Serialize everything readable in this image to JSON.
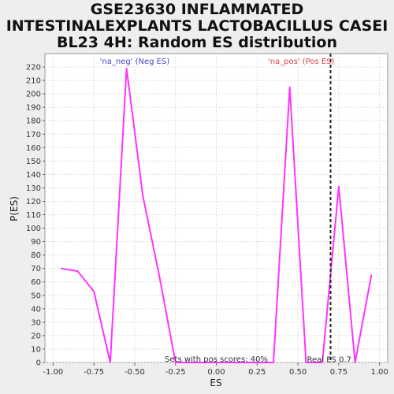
{
  "chart_data": {
    "type": "line",
    "title_lines": [
      "GSE23630 INFLAMMATED",
      "INTESTINALEXPLANTS LACTOBACILLUS CASEI",
      "BL23 4H: Random ES distribution"
    ],
    "xlabel": "ES",
    "ylabel": "P(ES)",
    "xlim": [
      -1.05,
      1.05
    ],
    "ylim": [
      0,
      230
    ],
    "x_ticks": [
      -1.0,
      -0.75,
      -0.5,
      -0.25,
      0.0,
      0.25,
      0.5,
      0.75,
      1.0
    ],
    "x_tick_labels": [
      "-1.00",
      "-0.75",
      "-0.50",
      "-0.25",
      "0.00",
      "0.25",
      "0.50",
      "0.75",
      "1.00"
    ],
    "y_ticks": [
      0,
      10,
      20,
      30,
      40,
      50,
      60,
      70,
      80,
      90,
      100,
      110,
      120,
      130,
      140,
      150,
      160,
      170,
      180,
      190,
      200,
      210,
      220
    ],
    "series": [
      {
        "name": "P(ES)",
        "color": "#ff33ff",
        "x": [
          -0.95,
          -0.85,
          -0.75,
          -0.65,
          -0.55,
          -0.45,
          -0.35,
          -0.25,
          -0.15,
          -0.05,
          0.05,
          0.15,
          0.25,
          0.35,
          0.45,
          0.55,
          0.65,
          0.75,
          0.85,
          0.95
        ],
        "y": [
          70,
          68,
          53,
          0,
          219,
          124,
          65,
          0,
          0,
          0,
          0,
          0,
          0,
          0,
          205,
          0,
          0,
          131,
          0,
          65
        ]
      }
    ],
    "annotations": {
      "neg_label": "'na_neg' (Neg ES)",
      "pos_label": "'na_pos' (Pos ES)",
      "pos_scores": "Sets with pos scores: 40%",
      "real_es_label": "Real ES 0.7",
      "real_es": 0.7
    },
    "colors": {
      "neg": "#4444cc",
      "pos": "#dd4444",
      "line": "#ff33ff",
      "plot_bg": "#ffffff",
      "page_bg": "#eeeeee"
    }
  }
}
